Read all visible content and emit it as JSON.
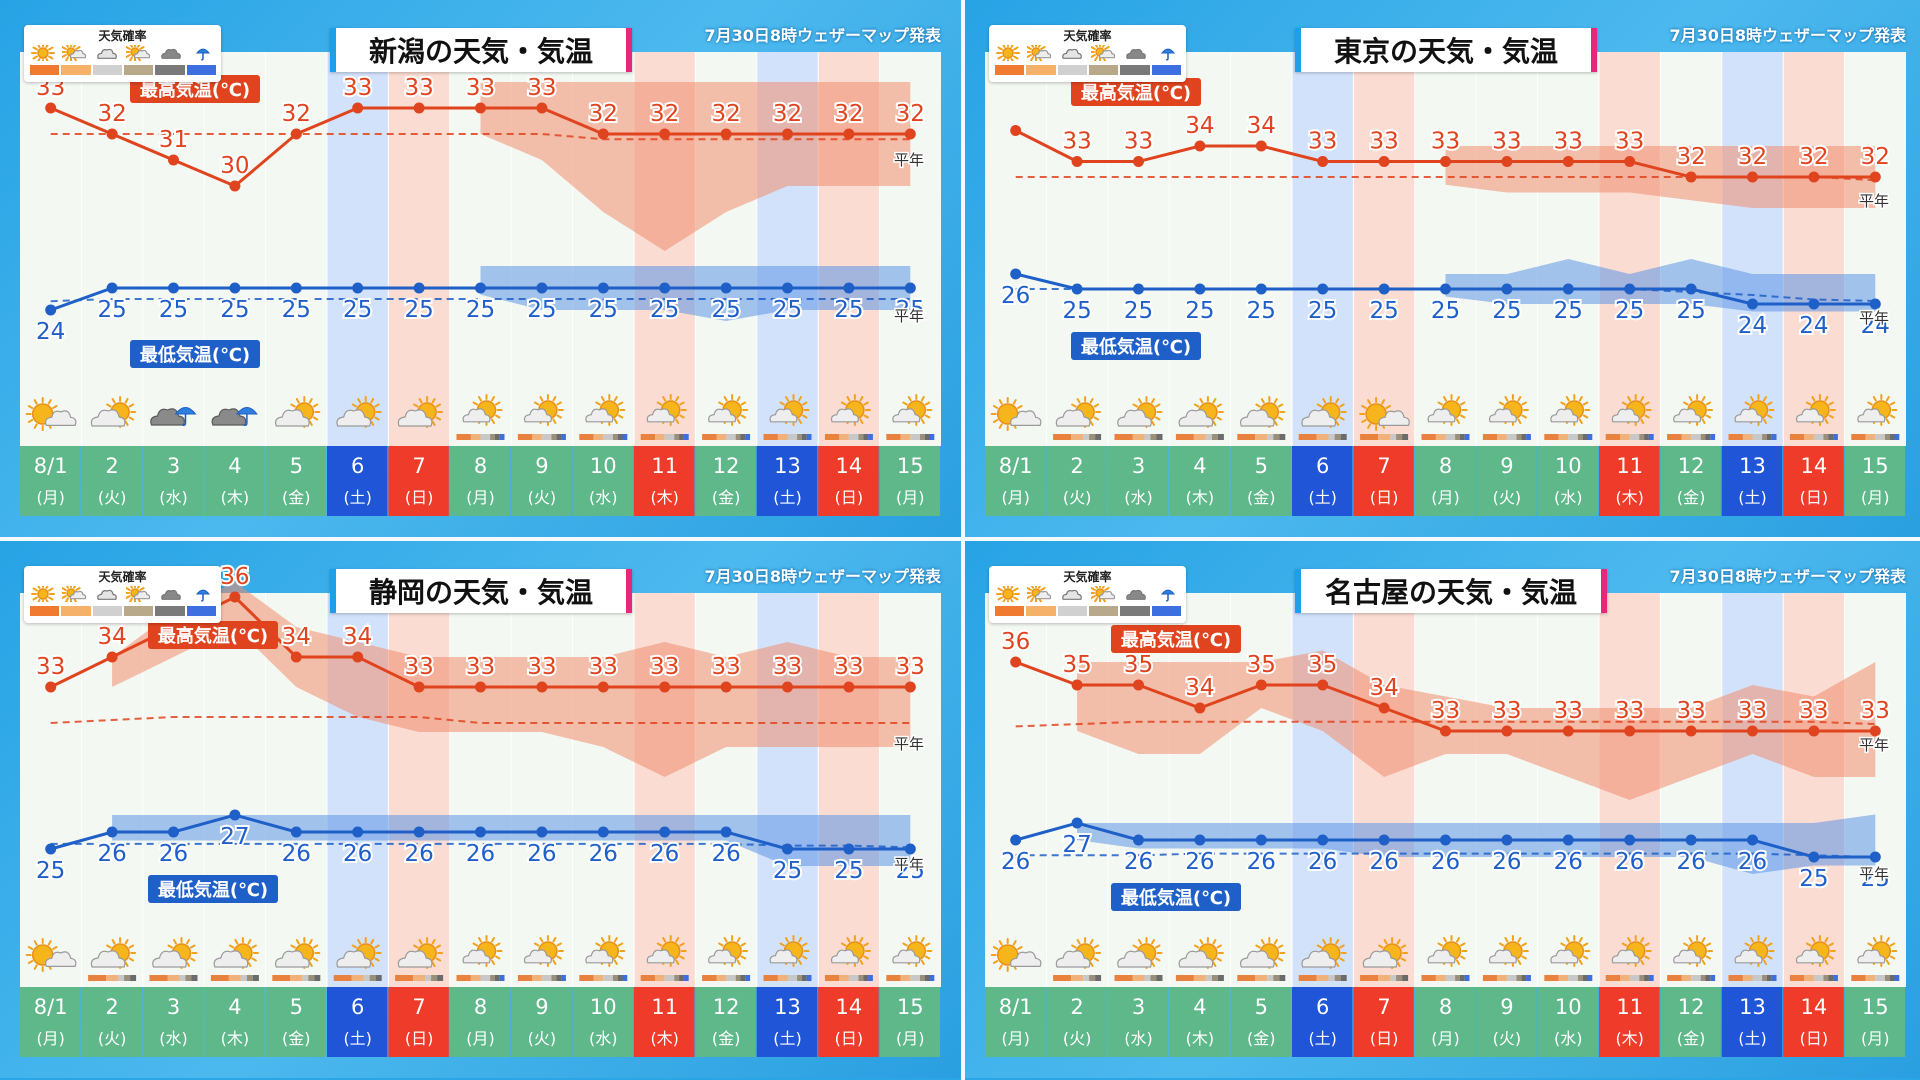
{
  "issued": "7月30日8時ウェザーマップ発表",
  "legend": {
    "title": "天気確率",
    "icons": [
      "sun-icon",
      "sun-cloud-icon",
      "cloud-icon",
      "sun-cloud-icon",
      "cloud-icon",
      "umbrella-icon"
    ],
    "colors": [
      "#f07a30",
      "#f5b06a",
      "#d0d0d0",
      "#b8a98a",
      "#7a7a7a",
      "#3d6fe0"
    ]
  },
  "labels": {
    "max": "最高気温(℃)",
    "min": "最低気温(℃)",
    "normal": "平年"
  },
  "colors": {
    "max_line": "#e0441f",
    "max_band": "#f08c6e",
    "min_line": "#1f5fc8",
    "min_band": "#5d96e6",
    "row_green": "#5fb88a",
    "saturday": "#1f55d6",
    "sunday": "#ee3b2a",
    "holiday": "#ee3b2a"
  },
  "days": [
    {
      "date": "8/1",
      "dow": "(月)",
      "type": "weekday"
    },
    {
      "date": "2",
      "dow": "(火)",
      "type": "weekday"
    },
    {
      "date": "3",
      "dow": "(水)",
      "type": "weekday"
    },
    {
      "date": "4",
      "dow": "(木)",
      "type": "weekday"
    },
    {
      "date": "5",
      "dow": "(金)",
      "type": "weekday"
    },
    {
      "date": "6",
      "dow": "(土)",
      "type": "saturday"
    },
    {
      "date": "7",
      "dow": "(日)",
      "type": "sunday"
    },
    {
      "date": "8",
      "dow": "(月)",
      "type": "weekday"
    },
    {
      "date": "9",
      "dow": "(火)",
      "type": "weekday"
    },
    {
      "date": "10",
      "dow": "(水)",
      "type": "weekday"
    },
    {
      "date": "11",
      "dow": "(木)",
      "type": "holiday"
    },
    {
      "date": "12",
      "dow": "(金)",
      "type": "weekday"
    },
    {
      "date": "13",
      "dow": "(土)",
      "type": "saturday"
    },
    {
      "date": "14",
      "dow": "(日)",
      "type": "sunday"
    },
    {
      "date": "15",
      "dow": "(月)",
      "type": "weekday"
    }
  ],
  "chart_data": [
    {
      "type": "line",
      "title": "新潟の天気・気温",
      "weather": [
        "sunny-cloudy",
        "cloudy-sunny",
        "rain",
        "rain",
        "cloudy-sunny",
        "cloudy-sunny",
        "cloudy-sunny",
        "sun-cloud",
        "sun-cloud",
        "sun-cloud",
        "sun-cloud",
        "sun-cloud",
        "sun-cloud",
        "sun-cloud",
        "sun-cloud"
      ],
      "series": [
        {
          "name": "最高気温(℃)",
          "values": [
            33,
            32,
            31,
            30,
            32,
            33,
            33,
            33,
            33,
            32,
            32,
            32,
            32,
            32,
            32
          ],
          "band_low": [
            null,
            null,
            null,
            null,
            null,
            null,
            null,
            32,
            31,
            29,
            27.5,
            29,
            30,
            30,
            30
          ],
          "band_high": [
            null,
            null,
            null,
            null,
            null,
            null,
            null,
            34,
            34,
            34,
            34,
            34,
            34,
            34,
            34
          ],
          "normal": [
            32,
            32,
            32,
            32,
            32,
            32,
            32,
            32,
            32,
            31.8,
            31.8,
            31.8,
            31.8,
            31.8,
            31.8
          ]
        },
        {
          "name": "最低気温(℃)",
          "values": [
            24,
            25,
            25,
            25,
            25,
            25,
            25,
            25,
            25,
            25,
            25,
            25,
            25,
            25,
            25
          ],
          "band_low": [
            null,
            null,
            null,
            null,
            null,
            null,
            null,
            24.7,
            24,
            24,
            24,
            23.5,
            24,
            24,
            24
          ],
          "band_high": [
            null,
            null,
            null,
            null,
            null,
            null,
            null,
            26,
            26,
            26,
            26,
            26,
            26,
            26,
            26
          ],
          "normal": [
            24.4,
            24.5,
            24.5,
            24.5,
            24.5,
            24.5,
            24.5,
            24.5,
            24.5,
            24.5,
            24.5,
            24.5,
            24.5,
            24.5,
            24.5
          ]
        }
      ]
    },
    {
      "type": "line",
      "title": "東京の天気・気温",
      "weather": [
        "sunny-cloudy",
        "cloudy-sunny",
        "cloudy-sunny",
        "cloudy-sunny",
        "cloudy-sunny",
        "cloudy-sunny",
        "sunny-cloudy",
        "sun-cloud",
        "sun-cloud",
        "sun-cloud",
        "sun-cloud",
        "sun-cloud",
        "sun-cloud",
        "sun-cloud",
        "sun-cloud"
      ],
      "series": [
        {
          "name": "最高気温(℃)",
          "values": [
            null,
            33,
            33,
            34,
            34,
            33,
            33,
            33,
            33,
            33,
            33,
            32,
            32,
            32,
            32
          ],
          "band_low": [
            null,
            null,
            null,
            null,
            null,
            null,
            null,
            31.5,
            31,
            31,
            31,
            30.5,
            30,
            30,
            30
          ],
          "band_high": [
            null,
            null,
            null,
            null,
            null,
            null,
            null,
            34,
            34,
            34,
            34,
            34,
            34,
            34,
            34
          ],
          "normal": [
            32,
            32,
            32,
            32,
            32,
            32,
            32,
            32,
            32,
            32,
            32,
            32,
            32,
            32,
            31.8
          ]
        },
        {
          "name": "最低気温(℃)",
          "values": [
            26,
            25,
            25,
            25,
            25,
            25,
            25,
            25,
            25,
            25,
            25,
            25,
            24,
            24,
            24
          ],
          "band_low": [
            null,
            null,
            null,
            null,
            null,
            null,
            null,
            24.5,
            24,
            24,
            24,
            24,
            23.5,
            23.5,
            23.5
          ],
          "band_high": [
            null,
            null,
            null,
            null,
            null,
            null,
            null,
            26,
            26,
            27,
            26,
            27,
            26,
            26,
            26
          ],
          "normal": [
            25,
            25,
            25,
            25,
            25,
            25,
            25,
            25,
            25,
            25,
            25,
            24.8,
            24.6,
            24.3,
            24.2
          ]
        }
      ]
    },
    {
      "type": "line",
      "title": "静岡の天気・気温",
      "weather": [
        "sunny-cloudy",
        "cloudy-sunny",
        "cloudy-sunny",
        "cloudy-sunny",
        "cloudy-sunny",
        "cloudy-sunny",
        "cloudy-sunny",
        "sun-cloud",
        "sun-cloud",
        "sun-cloud",
        "sun-cloud",
        "sun-cloud",
        "sun-cloud",
        "sun-cloud",
        "sun-cloud"
      ],
      "series": [
        {
          "name": "最高気温(℃)",
          "values": [
            33,
            34,
            35,
            36,
            34,
            34,
            33,
            33,
            33,
            33,
            33,
            33,
            33,
            33,
            33
          ],
          "band_low": [
            null,
            33,
            34,
            35,
            33,
            32,
            31.5,
            31.5,
            31.5,
            31,
            30,
            31,
            31,
            31,
            31
          ],
          "band_high": [
            null,
            34,
            35.5,
            36.5,
            35,
            34.5,
            34,
            34,
            34,
            34,
            34.5,
            34,
            34.5,
            34,
            34
          ],
          "normal": [
            31.8,
            31.9,
            32,
            32,
            32,
            32,
            32,
            31.8,
            31.8,
            31.8,
            31.8,
            31.8,
            31.8,
            31.8,
            31.8
          ]
        },
        {
          "name": "最低気温(℃)",
          "values": [
            25,
            26,
            26,
            27,
            26,
            26,
            26,
            26,
            26,
            26,
            26,
            26,
            25,
            25,
            25
          ],
          "band_low": [
            null,
            25.5,
            25.5,
            25.5,
            25.5,
            25.5,
            25.5,
            25.5,
            25.5,
            25.5,
            25.5,
            25.5,
            24,
            24,
            24
          ],
          "band_high": [
            null,
            27,
            27,
            27,
            27,
            27,
            27,
            27,
            27,
            27,
            27,
            27,
            27,
            27,
            27
          ],
          "normal": [
            25.3,
            25.3,
            25.3,
            25.3,
            25.3,
            25.3,
            25.3,
            25.3,
            25.3,
            25.3,
            25.3,
            25.3,
            25.2,
            25.2,
            25.1
          ]
        }
      ]
    },
    {
      "type": "line",
      "title": "名古屋の天気・気温",
      "weather": [
        "sunny-cloudy",
        "cloudy-sunny",
        "cloudy-sunny",
        "cloudy-sunny",
        "cloudy-sunny",
        "cloudy-sunny",
        "cloudy-sunny",
        "sun-cloud",
        "sun-cloud",
        "sun-cloud",
        "sun-cloud",
        "sun-cloud",
        "sun-cloud",
        "sun-cloud",
        "sun-cloud"
      ],
      "series": [
        {
          "name": "最高気温(℃)",
          "values": [
            36,
            35,
            35,
            34,
            35,
            35,
            34,
            33,
            33,
            33,
            33,
            33,
            33,
            33,
            33
          ],
          "band_low": [
            null,
            33,
            32,
            32,
            34,
            33,
            31,
            32,
            32,
            31,
            30,
            31,
            32,
            31,
            31
          ],
          "band_high": [
            null,
            36,
            36,
            36,
            36,
            36.5,
            35,
            34.5,
            34,
            34,
            34,
            34,
            35,
            34.5,
            36
          ],
          "normal": [
            33.2,
            33.3,
            33.4,
            33.4,
            33.4,
            33.4,
            33.4,
            33.4,
            33.4,
            33.4,
            33.4,
            33.4,
            33.4,
            33.4,
            33.3
          ]
        },
        {
          "name": "最低気温(℃)",
          "values": [
            26,
            27,
            26,
            26,
            26,
            26,
            26,
            26,
            26,
            26,
            26,
            26,
            26,
            25,
            25
          ],
          "band_low": [
            null,
            26,
            25.5,
            25.5,
            25.5,
            25.5,
            25,
            25,
            25,
            25,
            25,
            25,
            24,
            24.5,
            24.5
          ],
          "band_high": [
            null,
            27,
            27,
            27,
            27,
            27,
            27,
            27,
            27,
            27,
            27,
            27,
            27,
            27,
            27.5
          ],
          "normal": [
            25.1,
            25.1,
            25.1,
            25.2,
            25.2,
            25.2,
            25.2,
            25.2,
            25.2,
            25.2,
            25.2,
            25.2,
            25.2,
            25.1,
            25
          ]
        }
      ]
    }
  ]
}
